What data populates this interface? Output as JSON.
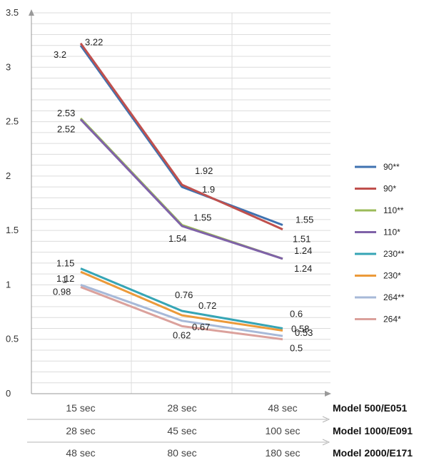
{
  "chart_data": {
    "type": "line",
    "categories": [
      "15 sec",
      "28 sec",
      "48 sec"
    ],
    "category_rows": [
      {
        "model": "Model 500/E051",
        "labels": [
          "15 sec",
          "28 sec",
          "48 sec"
        ]
      },
      {
        "model": "Model 1000/E091",
        "labels": [
          "28 sec",
          "45 sec",
          "100 sec"
        ]
      },
      {
        "model": "Model 2000/E171",
        "labels": [
          "48 sec",
          "80 sec",
          "180 sec"
        ]
      }
    ],
    "ylim": [
      0,
      3.5
    ],
    "yticks": [
      "0",
      "0.5",
      "1",
      "1.5",
      "2",
      "2.5",
      "3",
      "3.5"
    ],
    "grid": true,
    "legend_position": "right",
    "series": [
      {
        "name": "90**",
        "color": "#3f72b0",
        "values": [
          3.2,
          1.9,
          1.55
        ],
        "labels": [
          "3.2",
          "1.9",
          "1.55"
        ]
      },
      {
        "name": "90*",
        "color": "#c0504d",
        "values": [
          3.22,
          1.92,
          1.51
        ],
        "labels": [
          "3.22",
          "1.92",
          "1.51"
        ]
      },
      {
        "name": "110**",
        "color": "#9bbb59",
        "values": [
          2.53,
          1.55,
          1.24
        ],
        "labels": [
          "2.53",
          "1.55",
          "1.24"
        ]
      },
      {
        "name": "110*",
        "color": "#7f62a8",
        "values": [
          2.52,
          1.54,
          1.24
        ],
        "labels": [
          "2.52",
          "1.54",
          "1.24"
        ]
      },
      {
        "name": "230**",
        "color": "#36a5b5",
        "values": [
          1.15,
          0.76,
          0.6
        ],
        "labels": [
          "1.15",
          "0.76",
          "0.6"
        ]
      },
      {
        "name": "230*",
        "color": "#ec9a3a",
        "values": [
          1.12,
          0.72,
          0.58
        ],
        "labels": [
          "1.12",
          "0.72",
          "0.58"
        ]
      },
      {
        "name": "264**",
        "color": "#a7b9d8",
        "values": [
          1,
          0.67,
          0.53
        ],
        "labels": [
          "1",
          "0.67",
          "0.53"
        ]
      },
      {
        "name": "264*",
        "color": "#dba19c",
        "values": [
          0.98,
          0.62,
          0.5
        ],
        "labels": [
          "0.98",
          "0.62",
          "0.5"
        ]
      }
    ]
  }
}
